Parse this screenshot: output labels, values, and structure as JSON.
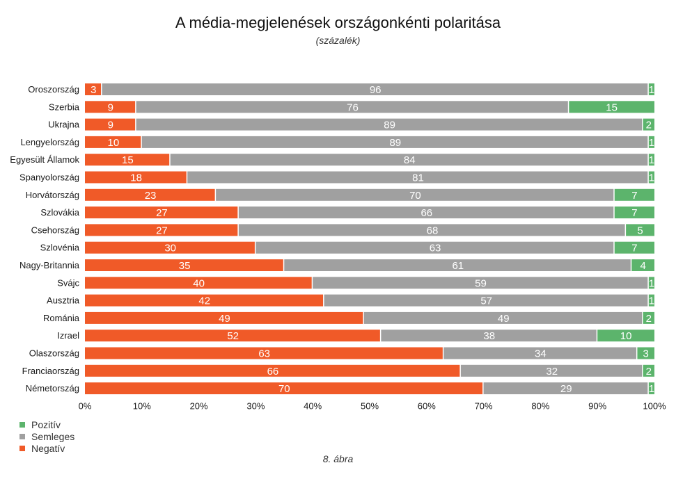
{
  "chart_data": {
    "type": "bar",
    "orientation": "horizontal",
    "stacked": true,
    "title": "A média-megjelenések országonkénti polaritása",
    "subtitle": "(százalék)",
    "caption": "8. ábra",
    "categories": [
      "Oroszország",
      "Szerbia",
      "Ukrajna",
      "Lengyelország",
      "Egyesült Államok",
      "Spanyolország",
      "Horvátország",
      "Szlovákia",
      "Csehország",
      "Szlovénia",
      "Nagy-Britannia",
      "Svájc",
      "Ausztria",
      "Románia",
      "Izrael",
      "Olaszország",
      "Franciaország",
      "Németország"
    ],
    "series": [
      {
        "name": "Negatív",
        "color": "#f05a28",
        "values": [
          3,
          9,
          9,
          10,
          15,
          18,
          23,
          27,
          27,
          30,
          35,
          40,
          42,
          49,
          52,
          63,
          66,
          70
        ]
      },
      {
        "name": "Semleges",
        "color": "#a0a0a0",
        "values": [
          96,
          76,
          89,
          89,
          84,
          81,
          70,
          66,
          68,
          63,
          61,
          59,
          57,
          49,
          38,
          34,
          32,
          29
        ]
      },
      {
        "name": "Pozitív",
        "color": "#5cb46c",
        "values": [
          1,
          15,
          2,
          1,
          1,
          1,
          7,
          7,
          5,
          7,
          4,
          1,
          1,
          2,
          10,
          3,
          2,
          1
        ]
      }
    ],
    "legend": [
      {
        "name": "Pozitív",
        "color": "#5cb46c"
      },
      {
        "name": "Semleges",
        "color": "#a0a0a0"
      },
      {
        "name": "Negatív",
        "color": "#f05a28"
      }
    ],
    "xlim": [
      0,
      100
    ],
    "xticks": [
      "0%",
      "10%",
      "20%",
      "30%",
      "40%",
      "50%",
      "60%",
      "70%",
      "80%",
      "90%",
      "100%"
    ],
    "legend_position": "bottom-left"
  }
}
